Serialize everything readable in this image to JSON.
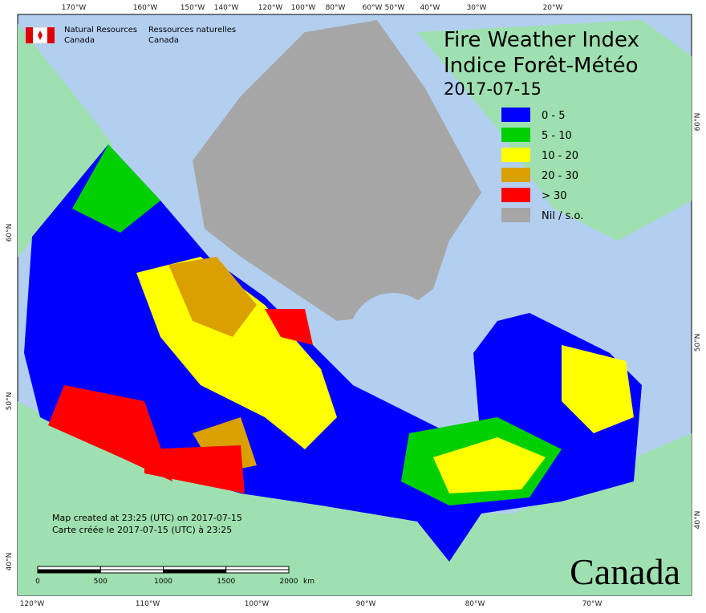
{
  "header": {
    "agency_en": [
      "Natural Resources",
      "Canada"
    ],
    "agency_fr": [
      "Ressources naturelles",
      "Canada"
    ]
  },
  "title": {
    "line1": "Fire Weather Index",
    "line2": "Indice Forêt-Météo",
    "date": "2017-07-15"
  },
  "legend": [
    {
      "label": "0 - 5",
      "color": "#0000ff"
    },
    {
      "label": "5 - 10",
      "color": "#00d000"
    },
    {
      "label": "10 - 20",
      "color": "#ffff00"
    },
    {
      "label": "20 - 30",
      "color": "#d9a000"
    },
    {
      "label": "> 30",
      "color": "#ff0000"
    },
    {
      "label": "Nil / s.o.",
      "color": "#a6a6a6"
    }
  ],
  "notes": [
    "Map created at 23:25 (UTC) on 2017-07-15",
    "Carte créée le 2017-07-15 (UTC) à 23:25"
  ],
  "scale_bar": {
    "ticks": [
      0,
      500,
      1000,
      1500,
      2000
    ],
    "unit": "km"
  },
  "graticule": {
    "top": [
      "170°W",
      "160°W",
      "150°W",
      "140°W",
      "120°W",
      "100°W",
      "80°W",
      "60°W",
      "50°W",
      "40°W",
      "30°W",
      "20°W"
    ],
    "bottom": [
      "120°W",
      "110°W",
      "100°W",
      "90°W",
      "80°W",
      "70°W"
    ],
    "left": [
      "60°N",
      "50°N",
      "40°N"
    ],
    "right": [
      "60°N",
      "50°N",
      "40°N"
    ]
  },
  "wordmark": "Canada"
}
